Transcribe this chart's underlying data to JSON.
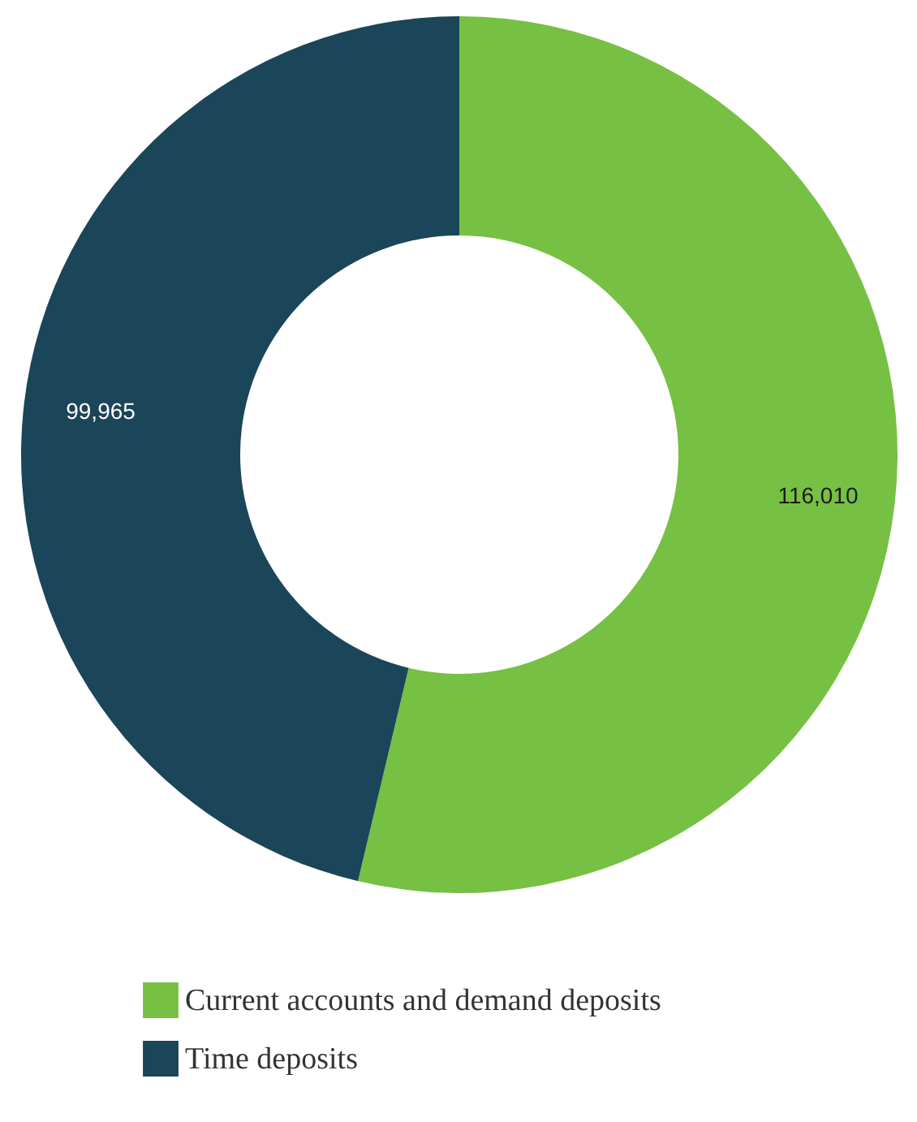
{
  "chart_data": {
    "type": "donut",
    "categories": [
      "Current accounts and demand deposits",
      "Time deposits"
    ],
    "values": [
      116010,
      99965
    ],
    "colors": [
      "#76c043",
      "#1b4559"
    ],
    "value_labels": [
      "116,010",
      "99,965"
    ],
    "legend": "bottom"
  }
}
